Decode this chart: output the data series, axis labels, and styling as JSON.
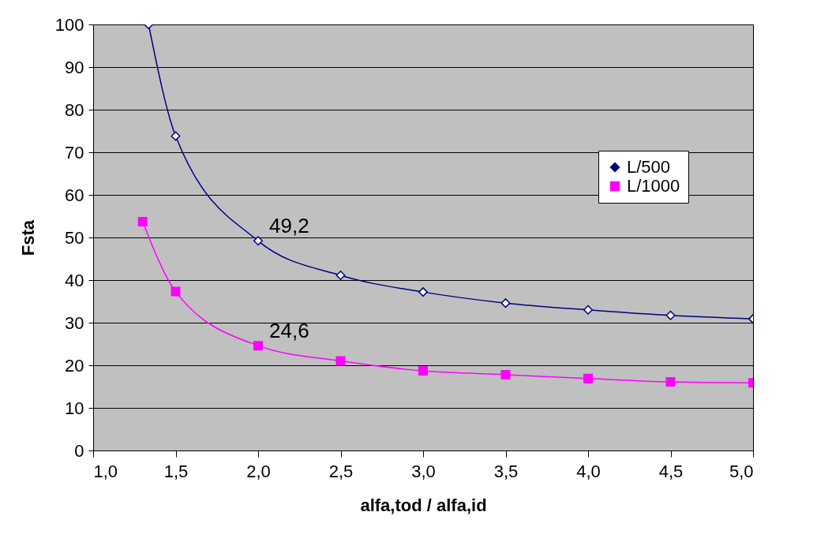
{
  "chart_data": {
    "type": "line",
    "xlabel": "alfa,tod / alfa,id",
    "ylabel": "Fsta",
    "xlim": [
      1.0,
      5.0
    ],
    "xticks": [
      {
        "value": 1.0,
        "label": "1,0"
      },
      {
        "value": 1.5,
        "label": "1,5"
      },
      {
        "value": 2.0,
        "label": "2,0"
      },
      {
        "value": 2.5,
        "label": "2,5"
      },
      {
        "value": 3.0,
        "label": "3,0"
      },
      {
        "value": 3.5,
        "label": "3,5"
      },
      {
        "value": 4.0,
        "label": "4,0"
      },
      {
        "value": 4.5,
        "label": "4,5"
      },
      {
        "value": 5.0,
        "label": "5,0"
      }
    ],
    "ylim": [
      0,
      100
    ],
    "yticks": [
      0,
      10,
      20,
      30,
      40,
      50,
      60,
      70,
      80,
      90,
      100
    ],
    "grid": "y",
    "legend": "right",
    "series": [
      {
        "name": "L/500",
        "marker": "diamond",
        "color": "#000080",
        "x": [
          1.336,
          1.5,
          2.0,
          2.5,
          3.0,
          3.5,
          4.0,
          4.5,
          5.0
        ],
        "values": [
          100,
          73.8,
          49.2,
          41.1,
          37.2,
          34.6,
          33.0,
          31.7,
          30.9
        ]
      },
      {
        "name": "L/1000",
        "marker": "square",
        "color": "#ff00ff",
        "x": [
          1.3,
          1.5,
          2.0,
          2.5,
          3.0,
          3.5,
          4.0,
          4.5,
          5.0
        ],
        "values": [
          53.7,
          37.3,
          24.6,
          21.0,
          18.7,
          17.8,
          16.9,
          16.1,
          15.9
        ]
      }
    ],
    "annotations": [
      {
        "text": "49,2",
        "x": 2.0,
        "y": 49.2
      },
      {
        "text": "24,6",
        "x": 2.0,
        "y": 24.6
      }
    ]
  }
}
